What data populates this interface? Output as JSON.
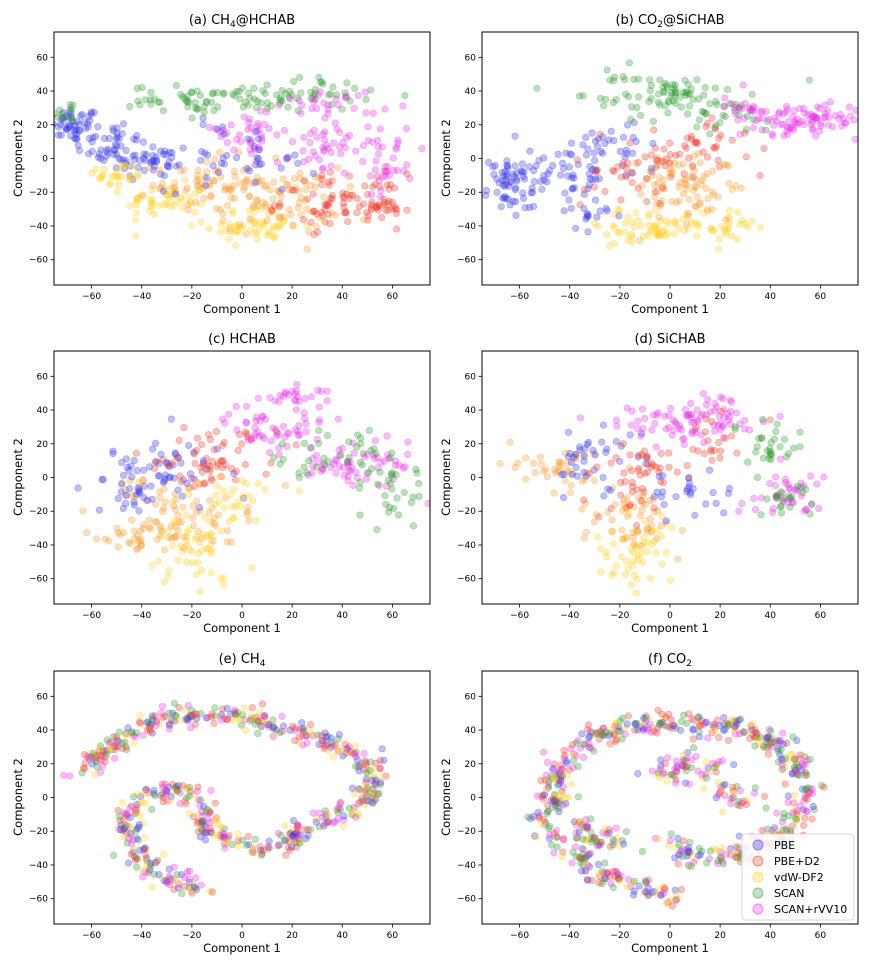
{
  "colors": {
    "PBE": "#3535e8",
    "PBE+D2": "#f03a2a",
    "vdW-DF2": "#ffcf1f",
    "SCAN": "#2e9a2e",
    "SCAN+rVV10": "#e832e8",
    "orange_blend": "#f89a2a"
  },
  "legend": {
    "entries": [
      "PBE",
      "PBE+D2",
      "vdW-DF2",
      "SCAN",
      "SCAN+rVV10"
    ],
    "placement": "lower-right of panel (f)"
  },
  "chart_data": [
    {
      "id": "a",
      "type": "scatter",
      "title_parts": [
        "(a) CH",
        "4",
        "@HCHAB"
      ],
      "xlabel": "Component 1",
      "ylabel": "Component 2",
      "xlim": [
        -75,
        75
      ],
      "ylim": [
        -75,
        75
      ],
      "xticks": [
        -60,
        -40,
        -20,
        0,
        20,
        40,
        60
      ],
      "yticks": [
        -60,
        -40,
        -20,
        0,
        20,
        40,
        60
      ],
      "clusters": [
        {
          "series": "PBE",
          "x": -68,
          "y": 20,
          "sx": 6,
          "sy": 5,
          "n": 50
        },
        {
          "series": "PBE",
          "x": -52,
          "y": 8,
          "sx": 7,
          "sy": 8,
          "n": 50
        },
        {
          "series": "PBE",
          "x": -35,
          "y": -2,
          "sx": 8,
          "sy": 6,
          "n": 40
        },
        {
          "series": "SCAN",
          "x": -70,
          "y": 28,
          "sx": 3,
          "sy": 3,
          "n": 12
        },
        {
          "series": "vdW-DF2",
          "x": -50,
          "y": -10,
          "sx": 6,
          "sy": 4,
          "n": 25
        },
        {
          "series": "vdW-DF2",
          "x": -30,
          "y": -25,
          "sx": 8,
          "sy": 5,
          "n": 45
        },
        {
          "series": "orange_blend",
          "x": -15,
          "y": -15,
          "sx": 10,
          "sy": 8,
          "n": 60
        },
        {
          "series": "vdW-DF2",
          "x": 5,
          "y": -40,
          "sx": 10,
          "sy": 5,
          "n": 50
        },
        {
          "series": "orange_blend",
          "x": 15,
          "y": -25,
          "sx": 12,
          "sy": 10,
          "n": 80
        },
        {
          "series": "PBE+D2",
          "x": 40,
          "y": -25,
          "sx": 12,
          "sy": 8,
          "n": 70
        },
        {
          "series": "PBE+D2",
          "x": 57,
          "y": -30,
          "sx": 5,
          "sy": 3,
          "n": 25
        },
        {
          "series": "SCAN",
          "x": -20,
          "y": 35,
          "sx": 12,
          "sy": 4,
          "n": 45
        },
        {
          "series": "SCAN",
          "x": 20,
          "y": 38,
          "sx": 15,
          "sy": 5,
          "n": 60
        },
        {
          "series": "SCAN+rVV10",
          "x": 35,
          "y": 32,
          "sx": 10,
          "sy": 5,
          "n": 30
        },
        {
          "series": "SCAN+rVV10",
          "x": 35,
          "y": 5,
          "sx": 15,
          "sy": 8,
          "n": 60
        },
        {
          "series": "SCAN+rVV10",
          "x": 0,
          "y": 15,
          "sx": 10,
          "sy": 6,
          "n": 30
        },
        {
          "series": "PBE",
          "x": 0,
          "y": 0,
          "sx": 15,
          "sy": 10,
          "n": 40
        },
        {
          "series": "SCAN+rVV10",
          "x": 58,
          "y": -8,
          "sx": 4,
          "sy": 6,
          "n": 20
        }
      ]
    },
    {
      "id": "b",
      "type": "scatter",
      "title_parts": [
        "(b) CO",
        "2",
        "@SiCHAB"
      ],
      "xlabel": "Component 1",
      "ylabel": "Component 2",
      "xlim": [
        -75,
        75
      ],
      "ylim": [
        -75,
        75
      ],
      "xticks": [
        -60,
        -40,
        -20,
        0,
        20,
        40,
        60
      ],
      "yticks": [
        -60,
        -40,
        -20,
        0,
        20,
        40,
        60
      ],
      "clusters": [
        {
          "series": "PBE",
          "x": -63,
          "y": -15,
          "sx": 7,
          "sy": 8,
          "n": 60
        },
        {
          "series": "PBE",
          "x": -45,
          "y": -8,
          "sx": 8,
          "sy": 8,
          "n": 40
        },
        {
          "series": "PBE",
          "x": -25,
          "y": 0,
          "sx": 8,
          "sy": 10,
          "n": 40
        },
        {
          "series": "SCAN",
          "x": -5,
          "y": 38,
          "sx": 15,
          "sy": 6,
          "n": 80
        },
        {
          "series": "SCAN",
          "x": 20,
          "y": 25,
          "sx": 8,
          "sy": 6,
          "n": 25
        },
        {
          "series": "SCAN+rVV10",
          "x": 55,
          "y": 22,
          "sx": 12,
          "sy": 5,
          "n": 80
        },
        {
          "series": "SCAN+rVV10",
          "x": 30,
          "y": 28,
          "sx": 6,
          "sy": 5,
          "n": 25
        },
        {
          "series": "vdW-DF2",
          "x": -10,
          "y": -40,
          "sx": 12,
          "sy": 5,
          "n": 60
        },
        {
          "series": "vdW-DF2",
          "x": 22,
          "y": -40,
          "sx": 6,
          "sy": 5,
          "n": 30
        },
        {
          "series": "orange_blend",
          "x": 5,
          "y": -15,
          "sx": 14,
          "sy": 12,
          "n": 80
        },
        {
          "series": "PBE+D2",
          "x": 10,
          "y": 5,
          "sx": 12,
          "sy": 8,
          "n": 45
        },
        {
          "series": "PBE+D2",
          "x": -20,
          "y": -10,
          "sx": 10,
          "sy": 10,
          "n": 30
        },
        {
          "series": "PBE",
          "x": -30,
          "y": -35,
          "sx": 6,
          "sy": 6,
          "n": 15
        }
      ]
    },
    {
      "id": "c",
      "type": "scatter",
      "title_parts": [
        "(c) HCHAB"
      ],
      "xlabel": "Component 1",
      "ylabel": "Component 2",
      "xlim": [
        -75,
        75
      ],
      "ylim": [
        -75,
        75
      ],
      "xticks": [
        -60,
        -40,
        -20,
        0,
        20,
        40,
        60
      ],
      "yticks": [
        -60,
        -40,
        -20,
        0,
        20,
        40,
        60
      ],
      "clusters": [
        {
          "series": "vdW-DF2",
          "x": -20,
          "y": -45,
          "sx": 8,
          "sy": 10,
          "n": 50
        },
        {
          "series": "orange_blend",
          "x": -20,
          "y": -20,
          "sx": 15,
          "sy": 12,
          "n": 70
        },
        {
          "series": "orange_blend",
          "x": -40,
          "y": -35,
          "sx": 10,
          "sy": 5,
          "n": 30
        },
        {
          "series": "PBE",
          "x": -30,
          "y": 5,
          "sx": 12,
          "sy": 10,
          "n": 50
        },
        {
          "series": "PBE+D2",
          "x": -10,
          "y": 10,
          "sx": 12,
          "sy": 10,
          "n": 60
        },
        {
          "series": "vdW-DF2",
          "x": -5,
          "y": -10,
          "sx": 10,
          "sy": 8,
          "n": 30
        },
        {
          "series": "SCAN+rVV10",
          "x": 15,
          "y": 30,
          "sx": 10,
          "sy": 10,
          "n": 60
        },
        {
          "series": "SCAN+rVV10",
          "x": 45,
          "y": 5,
          "sx": 12,
          "sy": 10,
          "n": 60
        },
        {
          "series": "SCAN",
          "x": 40,
          "y": 10,
          "sx": 12,
          "sy": 10,
          "n": 40
        },
        {
          "series": "SCAN",
          "x": 60,
          "y": -10,
          "sx": 6,
          "sy": 8,
          "n": 25
        },
        {
          "series": "SCAN+rVV10",
          "x": 20,
          "y": 48,
          "sx": 5,
          "sy": 4,
          "n": 15
        },
        {
          "series": "PBE",
          "x": -45,
          "y": -10,
          "sx": 8,
          "sy": 8,
          "n": 25
        }
      ]
    },
    {
      "id": "d",
      "type": "scatter",
      "title_parts": [
        "(d) SiCHAB"
      ],
      "xlabel": "Component 1",
      "ylabel": "Component 2",
      "xlim": [
        -75,
        75
      ],
      "ylim": [
        -75,
        75
      ],
      "xticks": [
        -60,
        -40,
        -20,
        0,
        20,
        40,
        60
      ],
      "yticks": [
        -60,
        -40,
        -20,
        0,
        20,
        40,
        60
      ],
      "clusters": [
        {
          "series": "vdW-DF2",
          "x": -15,
          "y": -45,
          "sx": 8,
          "sy": 10,
          "n": 50
        },
        {
          "series": "orange_blend",
          "x": -15,
          "y": -25,
          "sx": 10,
          "sy": 10,
          "n": 50
        },
        {
          "series": "orange_blend",
          "x": -45,
          "y": 5,
          "sx": 10,
          "sy": 6,
          "n": 40
        },
        {
          "series": "PBE",
          "x": -30,
          "y": 10,
          "sx": 10,
          "sy": 8,
          "n": 40
        },
        {
          "series": "PBE+D2",
          "x": -10,
          "y": 0,
          "sx": 10,
          "sy": 12,
          "n": 50
        },
        {
          "series": "SCAN+rVV10",
          "x": 0,
          "y": 30,
          "sx": 15,
          "sy": 8,
          "n": 60
        },
        {
          "series": "SCAN+rVV10",
          "x": 20,
          "y": 40,
          "sx": 8,
          "sy": 6,
          "n": 30
        },
        {
          "series": "SCAN",
          "x": 40,
          "y": 20,
          "sx": 8,
          "sy": 8,
          "n": 30
        },
        {
          "series": "SCAN+rVV10",
          "x": 45,
          "y": -10,
          "sx": 8,
          "sy": 8,
          "n": 40
        },
        {
          "series": "SCAN",
          "x": 50,
          "y": -15,
          "sx": 6,
          "sy": 6,
          "n": 20
        },
        {
          "series": "PBE",
          "x": 5,
          "y": -10,
          "sx": 8,
          "sy": 8,
          "n": 25
        },
        {
          "series": "PBE+D2",
          "x": 20,
          "y": 20,
          "sx": 8,
          "sy": 8,
          "n": 20
        }
      ]
    },
    {
      "id": "e",
      "type": "scatter",
      "title_parts": [
        "(e) CH",
        "4"
      ],
      "xlabel": "Component 1",
      "ylabel": "Component 2",
      "xlim": [
        -75,
        75
      ],
      "ylim": [
        -75,
        75
      ],
      "xticks": [
        -60,
        -40,
        -20,
        0,
        20,
        40,
        60
      ],
      "yticks": [
        -60,
        -40,
        -20,
        0,
        20,
        40,
        60
      ],
      "curves": [
        {
          "points": [
            [
              -64,
              17
            ],
            [
              -50,
              32
            ],
            [
              -40,
              42
            ],
            [
              -25,
              47
            ],
            [
              -10,
              49
            ],
            [
              5,
              46
            ],
            [
              20,
              40
            ],
            [
              35,
              33
            ],
            [
              48,
              25
            ],
            [
              53,
              10
            ],
            [
              48,
              -3
            ],
            [
              38,
              -12
            ],
            [
              25,
              -18
            ],
            [
              15,
              -28
            ],
            [
              5,
              -30
            ],
            [
              -5,
              -25
            ],
            [
              -15,
              -15
            ],
            [
              -15,
              -5
            ],
            [
              -25,
              5
            ],
            [
              -38,
              0
            ],
            [
              -45,
              -10
            ],
            [
              -45,
              -25
            ],
            [
              -38,
              -40
            ],
            [
              -28,
              -48
            ],
            [
              -15,
              -57
            ]
          ],
          "n": 650,
          "spread": 3.2
        }
      ]
    },
    {
      "id": "f",
      "type": "scatter",
      "title_parts": [
        "(f) CO",
        "2"
      ],
      "xlabel": "Component 1",
      "ylabel": "Component 2",
      "xlim": [
        -75,
        75
      ],
      "ylim": [
        -75,
        75
      ],
      "xticks": [
        -60,
        -40,
        -20,
        0,
        20,
        40,
        60
      ],
      "yticks": [
        -60,
        -40,
        -20,
        0,
        20,
        40,
        60
      ],
      "curves": [
        {
          "points": [
            [
              -50,
              -15
            ],
            [
              -45,
              5
            ],
            [
              -42,
              22
            ],
            [
              -32,
              35
            ],
            [
              -15,
              43
            ],
            [
              5,
              45
            ],
            [
              25,
              42
            ],
            [
              42,
              32
            ],
            [
              52,
              18
            ],
            [
              55,
              0
            ],
            [
              50,
              -15
            ],
            [
              38,
              -28
            ],
            [
              25,
              -35
            ],
            [
              10,
              -35
            ],
            [
              0,
              -28
            ],
            [
              -5,
              -20
            ]
          ],
          "n": 500,
          "spread": 3.5
        },
        {
          "points": [
            [
              -5,
              10
            ],
            [
              5,
              20
            ],
            [
              15,
              15
            ],
            [
              25,
              5
            ],
            [
              30,
              -5
            ]
          ],
          "n": 90,
          "spread": 4
        },
        {
          "points": [
            [
              -48,
              -20
            ],
            [
              -38,
              -35
            ],
            [
              -28,
              -45
            ],
            [
              -15,
              -52
            ],
            [
              -5,
              -55
            ],
            [
              3,
              -58
            ]
          ],
          "n": 110,
          "spread": 3
        },
        {
          "points": [
            [
              -35,
              -15
            ],
            [
              -30,
              -25
            ],
            [
              -25,
              -28
            ],
            [
              -20,
              -22
            ]
          ],
          "n": 50,
          "spread": 3
        }
      ]
    }
  ]
}
